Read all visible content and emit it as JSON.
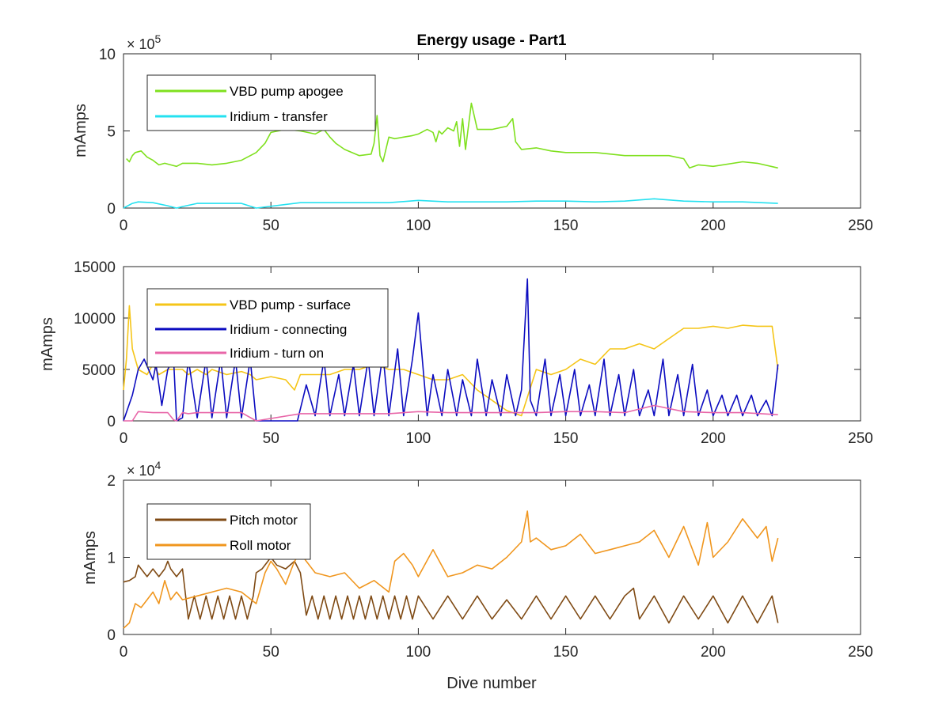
{
  "chart_data": [
    {
      "type": "line",
      "title": "Energy usage - Part1",
      "xlabel": "",
      "ylabel": "mAmps",
      "xlim": [
        0,
        250
      ],
      "ylim": [
        0,
        1000000
      ],
      "xticks": [
        "0",
        "50",
        "100",
        "150",
        "200",
        "250"
      ],
      "yticks": [
        "0",
        "5",
        "10"
      ],
      "y_exponent": "× 10",
      "y_exponent_power": "5",
      "legend_position": "top-left",
      "colors": [
        "#7fe01e",
        "#24e1f0"
      ],
      "series": [
        {
          "name": "VBD pump apogee",
          "x": [
            1,
            2,
            3,
            4,
            6,
            8,
            10,
            12,
            14,
            16,
            18,
            20,
            25,
            30,
            35,
            40,
            45,
            48,
            50,
            55,
            60,
            65,
            68,
            70,
            72,
            75,
            80,
            84,
            85,
            86,
            87,
            88,
            90,
            92,
            95,
            98,
            100,
            103,
            105,
            106,
            107,
            108,
            110,
            112,
            113,
            114,
            115,
            116,
            117,
            118,
            120,
            125,
            130,
            132,
            133,
            135,
            140,
            145,
            150,
            160,
            170,
            180,
            185,
            190,
            192,
            195,
            200,
            210,
            215,
            222
          ],
          "values": [
            320000,
            300000,
            340000,
            360000,
            370000,
            330000,
            310000,
            280000,
            290000,
            280000,
            270000,
            290000,
            290000,
            280000,
            290000,
            310000,
            360000,
            420000,
            490000,
            510000,
            500000,
            480000,
            510000,
            460000,
            420000,
            380000,
            340000,
            350000,
            420000,
            600000,
            340000,
            300000,
            460000,
            450000,
            460000,
            470000,
            480000,
            510000,
            490000,
            430000,
            500000,
            480000,
            520000,
            500000,
            560000,
            400000,
            580000,
            380000,
            530000,
            680000,
            510000,
            510000,
            530000,
            580000,
            430000,
            380000,
            390000,
            370000,
            360000,
            360000,
            340000,
            340000,
            340000,
            320000,
            260000,
            280000,
            270000,
            300000,
            290000,
            260000
          ]
        },
        {
          "name": "Iridium - transfer",
          "x": [
            0,
            3,
            5,
            10,
            15,
            18,
            20,
            25,
            30,
            35,
            40,
            45,
            60,
            70,
            80,
            90,
            100,
            110,
            120,
            130,
            140,
            150,
            160,
            170,
            180,
            190,
            200,
            210,
            222
          ],
          "values": [
            0,
            30000,
            40000,
            35000,
            15000,
            0,
            10000,
            30000,
            30000,
            30000,
            30000,
            0,
            35000,
            35000,
            35000,
            35000,
            50000,
            40000,
            40000,
            40000,
            45000,
            45000,
            40000,
            45000,
            60000,
            45000,
            40000,
            40000,
            30000
          ]
        }
      ]
    },
    {
      "type": "line",
      "title": "",
      "xlabel": "",
      "ylabel": "mAmps",
      "xlim": [
        0,
        250
      ],
      "ylim": [
        0,
        15000
      ],
      "xticks": [
        "0",
        "50",
        "100",
        "150",
        "200",
        "250"
      ],
      "yticks": [
        "0",
        "5000",
        "10000",
        "15000"
      ],
      "legend_position": "top-left",
      "colors": [
        "#f5c518",
        "#0c0cc0",
        "#e866a8"
      ],
      "series": [
        {
          "name": "VBD pump - surface",
          "x": [
            0,
            1,
            2,
            3,
            5,
            8,
            10,
            12,
            15,
            18,
            20,
            22,
            25,
            28,
            30,
            35,
            40,
            43,
            45,
            50,
            55,
            58,
            60,
            62,
            65,
            70,
            75,
            80,
            85,
            90,
            95,
            100,
            105,
            110,
            115,
            120,
            125,
            130,
            135,
            140,
            145,
            150,
            155,
            160,
            165,
            170,
            175,
            180,
            185,
            190,
            195,
            200,
            205,
            210,
            215,
            220,
            222
          ],
          "values": [
            3000,
            6000,
            11200,
            7000,
            5000,
            4500,
            5500,
            4500,
            5000,
            5000,
            5000,
            4500,
            5000,
            4500,
            5000,
            4500,
            4800,
            4500,
            4000,
            4300,
            4000,
            3000,
            4500,
            4500,
            4500,
            4500,
            5000,
            5000,
            5500,
            5000,
            5000,
            4500,
            4000,
            4000,
            4500,
            3000,
            2000,
            1000,
            500,
            5000,
            4500,
            5000,
            6000,
            5500,
            7000,
            7000,
            7500,
            7000,
            8000,
            9000,
            9000,
            9200,
            9000,
            9300,
            9200,
            9200,
            5000
          ]
        },
        {
          "name": "Iridium - connecting",
          "x": [
            0,
            3,
            5,
            7,
            10,
            11,
            13,
            15,
            17,
            18,
            20,
            22,
            25,
            28,
            30,
            33,
            35,
            38,
            40,
            43,
            45,
            50,
            55,
            59,
            62,
            65,
            68,
            70,
            73,
            75,
            78,
            80,
            83,
            85,
            88,
            90,
            93,
            95,
            98,
            100,
            103,
            105,
            108,
            110,
            113,
            115,
            118,
            120,
            123,
            125,
            128,
            130,
            133,
            135,
            137,
            138,
            140,
            143,
            145,
            148,
            150,
            153,
            155,
            158,
            160,
            163,
            165,
            168,
            170,
            173,
            175,
            178,
            180,
            183,
            185,
            188,
            190,
            193,
            195,
            198,
            200,
            203,
            205,
            208,
            210,
            213,
            215,
            218,
            220,
            222
          ],
          "values": [
            0,
            2500,
            5000,
            6000,
            4000,
            5500,
            1500,
            5000,
            6000,
            0,
            300,
            6000,
            300,
            6000,
            300,
            6000,
            300,
            6000,
            300,
            6000,
            0,
            0,
            0,
            0,
            3500,
            500,
            6000,
            500,
            4500,
            500,
            5500,
            500,
            6000,
            500,
            6500,
            500,
            7000,
            500,
            6000,
            10500,
            500,
            4500,
            500,
            5000,
            500,
            4000,
            500,
            6000,
            500,
            4000,
            500,
            4500,
            500,
            3000,
            13800,
            2000,
            500,
            6000,
            500,
            4500,
            500,
            5000,
            500,
            3500,
            500,
            6000,
            500,
            4500,
            500,
            5000,
            500,
            3000,
            500,
            6000,
            500,
            4500,
            500,
            5500,
            500,
            3000,
            500,
            2500,
            500,
            2500,
            500,
            2500,
            500,
            2000,
            500,
            5500
          ]
        },
        {
          "name": "Iridium - turn on",
          "x": [
            0,
            3,
            5,
            10,
            15,
            17,
            18,
            20,
            22,
            25,
            30,
            35,
            40,
            45,
            60,
            70,
            80,
            90,
            100,
            110,
            120,
            130,
            140,
            150,
            160,
            170,
            180,
            190,
            200,
            210,
            222
          ],
          "values": [
            0,
            0,
            900,
            800,
            800,
            100,
            0,
            800,
            700,
            800,
            800,
            800,
            800,
            0,
            700,
            700,
            700,
            700,
            900,
            800,
            800,
            800,
            800,
            900,
            900,
            800,
            1500,
            900,
            800,
            800,
            600
          ]
        }
      ]
    },
    {
      "type": "line",
      "title": "",
      "xlabel": "Dive number",
      "ylabel": "mAmps",
      "xlim": [
        0,
        250
      ],
      "ylim": [
        0,
        20000
      ],
      "xticks": [
        "0",
        "50",
        "100",
        "150",
        "200",
        "250"
      ],
      "yticks": [
        "0",
        "1",
        "2"
      ],
      "y_exponent": "× 10",
      "y_exponent_power": "4",
      "legend_position": "top-left",
      "colors": [
        "#7f4a14",
        "#f0961e"
      ],
      "series": [
        {
          "name": "Pitch motor",
          "x": [
            0,
            2,
            4,
            5,
            6,
            8,
            10,
            12,
            14,
            15,
            16,
            18,
            20,
            22,
            24,
            26,
            28,
            30,
            32,
            34,
            36,
            38,
            40,
            42,
            44,
            45,
            47,
            50,
            52,
            55,
            58,
            60,
            62,
            64,
            66,
            68,
            70,
            72,
            74,
            76,
            78,
            80,
            82,
            84,
            86,
            88,
            90,
            92,
            94,
            96,
            98,
            100,
            105,
            110,
            115,
            120,
            125,
            130,
            135,
            140,
            145,
            150,
            155,
            160,
            165,
            170,
            173,
            175,
            180,
            185,
            190,
            195,
            200,
            205,
            210,
            215,
            220,
            222
          ],
          "values": [
            6800,
            7000,
            7500,
            9000,
            8500,
            7500,
            8500,
            7500,
            8500,
            9500,
            8500,
            7500,
            8500,
            2000,
            5000,
            2000,
            5000,
            2000,
            5000,
            2000,
            5000,
            2000,
            5000,
            2000,
            5000,
            8000,
            8500,
            10000,
            9000,
            8500,
            9500,
            8000,
            2500,
            5000,
            2000,
            5000,
            2000,
            5000,
            2000,
            5000,
            2000,
            5000,
            2000,
            5000,
            2000,
            5000,
            2000,
            5000,
            2000,
            5000,
            2000,
            5000,
            2000,
            5000,
            2000,
            5000,
            2000,
            4500,
            2000,
            5000,
            2000,
            5000,
            2000,
            5000,
            2000,
            5000,
            6000,
            2000,
            5000,
            1500,
            5000,
            2000,
            5000,
            1500,
            5000,
            1500,
            5000,
            1500
          ]
        },
        {
          "name": "Roll motor",
          "x": [
            0,
            2,
            4,
            6,
            8,
            10,
            12,
            14,
            16,
            18,
            20,
            25,
            30,
            35,
            40,
            45,
            48,
            50,
            52,
            55,
            58,
            60,
            65,
            70,
            75,
            80,
            85,
            90,
            92,
            95,
            98,
            100,
            105,
            110,
            115,
            120,
            125,
            130,
            135,
            137,
            138,
            140,
            145,
            150,
            155,
            160,
            165,
            170,
            175,
            180,
            185,
            190,
            195,
            198,
            200,
            205,
            210,
            215,
            218,
            220,
            222
          ],
          "values": [
            800,
            1500,
            4000,
            3500,
            4500,
            5500,
            4000,
            7000,
            4500,
            5500,
            4500,
            5000,
            5500,
            6000,
            5500,
            4000,
            8000,
            9500,
            8500,
            6500,
            9500,
            10500,
            8000,
            7500,
            8000,
            6000,
            7000,
            5500,
            9500,
            10500,
            9000,
            7500,
            11000,
            7500,
            8000,
            9000,
            8500,
            10000,
            12000,
            16000,
            12000,
            12500,
            11000,
            11500,
            13000,
            10500,
            11000,
            11500,
            12000,
            13500,
            10000,
            14000,
            9000,
            14500,
            10000,
            12000,
            15000,
            12500,
            14000,
            9500,
            12500
          ]
        }
      ]
    }
  ]
}
